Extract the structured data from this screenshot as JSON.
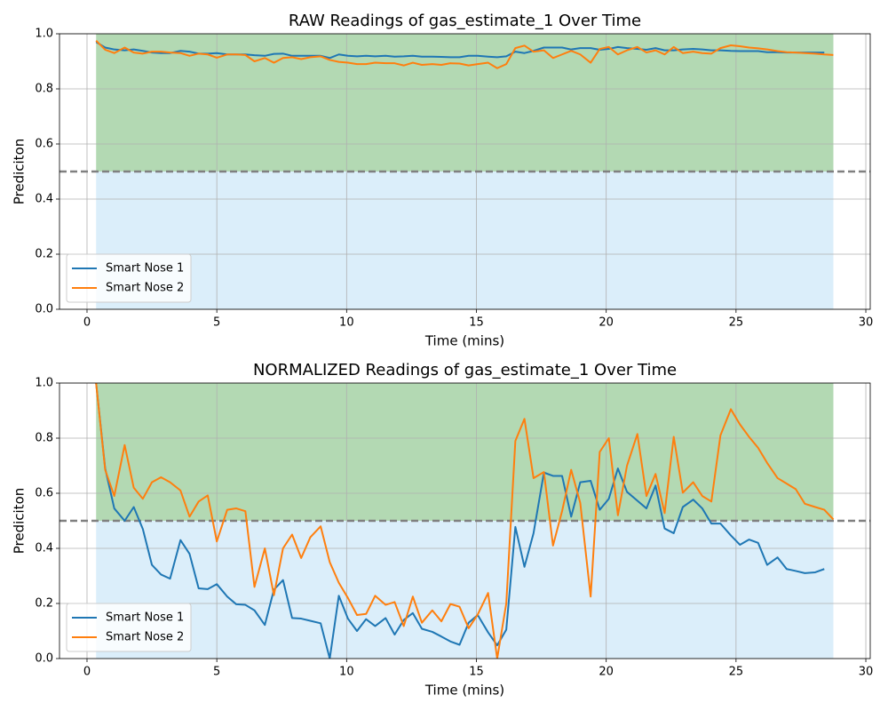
{
  "chart_data": [
    {
      "type": "line",
      "title": "RAW Readings of gas_estimate_1 Over Time",
      "xlabel": "Time (mins)",
      "ylabel": "Prediciton",
      "x": [
        0.35,
        0.7,
        1.05,
        1.45,
        1.8,
        2.15,
        2.5,
        2.85,
        3.2,
        3.6,
        3.95,
        4.3,
        4.65,
        5.0,
        5.4,
        5.75,
        6.1,
        6.45,
        6.85,
        7.2,
        7.55,
        7.9,
        8.25,
        8.6,
        9.0,
        9.35,
        9.7,
        10.05,
        10.4,
        10.75,
        11.1,
        11.5,
        11.85,
        12.2,
        12.55,
        12.9,
        13.3,
        13.65,
        14.0,
        14.35,
        14.7,
        15.05,
        15.45,
        15.8,
        16.15,
        16.5,
        16.85,
        17.2,
        17.6,
        17.95,
        18.3,
        18.65,
        19.0,
        19.4,
        19.75,
        20.1,
        20.45,
        20.8,
        21.2,
        21.55,
        21.9,
        22.25,
        22.6,
        22.95,
        23.35,
        23.7,
        24.05,
        24.4,
        24.8,
        25.15,
        25.5,
        25.85,
        26.2,
        26.6,
        26.95,
        27.3,
        27.65,
        28.05,
        28.4,
        28.75
      ],
      "series": [
        {
          "name": "Smart Nose 1",
          "color": "#1f77b4",
          "values": [
            0.97,
            0.95,
            0.943,
            0.94,
            0.943,
            0.938,
            0.932,
            0.93,
            0.93,
            0.938,
            0.935,
            0.928,
            0.928,
            0.93,
            0.925,
            0.925,
            0.925,
            0.922,
            0.92,
            0.927,
            0.928,
            0.92,
            0.92,
            0.92,
            0.92,
            0.912,
            0.925,
            0.92,
            0.918,
            0.92,
            0.918,
            0.92,
            0.917,
            0.918,
            0.92,
            0.917,
            0.917,
            0.916,
            0.915,
            0.915,
            0.92,
            0.92,
            0.917,
            0.915,
            0.918,
            0.935,
            0.93,
            0.938,
            0.95,
            0.95,
            0.95,
            0.943,
            0.948,
            0.948,
            0.942,
            0.945,
            0.952,
            0.948,
            0.945,
            0.942,
            0.948,
            0.94,
            0.94,
            0.943,
            0.945,
            0.943,
            0.94,
            0.94,
            0.938,
            0.937,
            0.937,
            0.937,
            0.933,
            0.933,
            0.932,
            0.932,
            0.932,
            0.932,
            0.932,
            null
          ]
        },
        {
          "name": "Smart Nose 2",
          "color": "#ff7f0e",
          "values": [
            0.975,
            0.942,
            0.93,
            0.95,
            0.932,
            0.928,
            0.935,
            0.935,
            0.932,
            0.93,
            0.92,
            0.928,
            0.925,
            0.913,
            0.925,
            0.925,
            0.923,
            0.9,
            0.912,
            0.895,
            0.912,
            0.915,
            0.908,
            0.915,
            0.918,
            0.905,
            0.898,
            0.895,
            0.89,
            0.89,
            0.895,
            0.893,
            0.893,
            0.885,
            0.895,
            0.887,
            0.89,
            0.887,
            0.893,
            0.892,
            0.885,
            0.89,
            0.895,
            0.875,
            0.89,
            0.948,
            0.957,
            0.935,
            0.94,
            0.912,
            0.925,
            0.938,
            0.925,
            0.895,
            0.945,
            0.952,
            0.925,
            0.94,
            0.952,
            0.932,
            0.94,
            0.925,
            0.952,
            0.93,
            0.935,
            0.93,
            0.928,
            0.948,
            0.958,
            0.955,
            0.95,
            0.947,
            0.943,
            0.937,
            0.933,
            0.932,
            0.93,
            0.928,
            0.925,
            0.923
          ]
        }
      ],
      "xlim": [
        -1.06,
        30.17
      ],
      "xticks": [
        0,
        5,
        10,
        15,
        20,
        25,
        30
      ],
      "ylim": [
        0,
        1
      ],
      "yticks": [
        {
          "value": 0,
          "label": "0.0"
        },
        0.2,
        0.4,
        0.6,
        0.8,
        {
          "value": 1,
          "label": "1.0"
        }
      ],
      "grid": true,
      "legend": "lower left",
      "threshold": 0.5,
      "threshold_color": "#808080",
      "above_color": "#b3d9b3",
      "below_color": "#dbeefa"
    },
    {
      "type": "line",
      "title": "NORMALIZED Readings of gas_estimate_1 Over Time",
      "xlabel": "Time (mins)",
      "ylabel": "Prediciton",
      "x": [
        0.35,
        0.7,
        1.05,
        1.45,
        1.8,
        2.15,
        2.5,
        2.85,
        3.2,
        3.6,
        3.95,
        4.3,
        4.65,
        5.0,
        5.4,
        5.75,
        6.1,
        6.45,
        6.85,
        7.2,
        7.55,
        7.9,
        8.25,
        8.6,
        9.0,
        9.35,
        9.7,
        10.05,
        10.4,
        10.75,
        11.1,
        11.5,
        11.85,
        12.2,
        12.55,
        12.9,
        13.3,
        13.65,
        14.0,
        14.35,
        14.7,
        15.05,
        15.45,
        15.8,
        16.15,
        16.5,
        16.85,
        17.2,
        17.6,
        17.95,
        18.3,
        18.65,
        19.0,
        19.4,
        19.75,
        20.1,
        20.45,
        20.8,
        21.2,
        21.55,
        21.9,
        22.25,
        22.6,
        22.95,
        23.35,
        23.7,
        24.05,
        24.4,
        24.8,
        25.15,
        25.5,
        25.85,
        26.2,
        26.6,
        26.95,
        27.3,
        27.65,
        28.05,
        28.4,
        28.75
      ],
      "series": [
        {
          "name": "Smart Nose 1",
          "color": "#1f77b4",
          "values": [
            1.0,
            0.69,
            0.545,
            0.5,
            0.55,
            0.47,
            0.34,
            0.305,
            0.29,
            0.43,
            0.38,
            0.255,
            0.252,
            0.27,
            0.225,
            0.197,
            0.195,
            0.175,
            0.122,
            0.25,
            0.285,
            0.147,
            0.145,
            0.137,
            0.128,
            0.0,
            0.228,
            0.145,
            0.1,
            0.143,
            0.118,
            0.147,
            0.087,
            0.14,
            0.165,
            0.108,
            0.097,
            0.08,
            0.062,
            0.05,
            0.13,
            0.158,
            0.095,
            0.048,
            0.105,
            0.478,
            0.333,
            0.455,
            0.675,
            0.663,
            0.663,
            0.515,
            0.64,
            0.645,
            0.54,
            0.58,
            0.69,
            0.605,
            0.573,
            0.545,
            0.628,
            0.472,
            0.455,
            0.55,
            0.577,
            0.545,
            0.49,
            0.49,
            0.447,
            0.413,
            0.432,
            0.42,
            0.34,
            0.367,
            0.325,
            0.318,
            0.31,
            0.313,
            0.325,
            null
          ]
        },
        {
          "name": "Smart Nose 2",
          "color": "#ff7f0e",
          "values": [
            1.0,
            0.685,
            0.59,
            0.775,
            0.62,
            0.58,
            0.64,
            0.658,
            0.64,
            0.61,
            0.515,
            0.57,
            0.592,
            0.425,
            0.54,
            0.545,
            0.535,
            0.26,
            0.4,
            0.23,
            0.4,
            0.45,
            0.365,
            0.44,
            0.48,
            0.35,
            0.275,
            0.22,
            0.158,
            0.162,
            0.228,
            0.195,
            0.205,
            0.118,
            0.225,
            0.13,
            0.175,
            0.135,
            0.198,
            0.188,
            0.11,
            0.16,
            0.238,
            0.0,
            0.2,
            0.79,
            0.87,
            0.655,
            0.677,
            0.41,
            0.535,
            0.685,
            0.565,
            0.225,
            0.75,
            0.8,
            0.52,
            0.7,
            0.815,
            0.59,
            0.67,
            0.528,
            0.805,
            0.602,
            0.64,
            0.59,
            0.57,
            0.81,
            0.905,
            0.85,
            0.805,
            0.765,
            0.71,
            0.655,
            0.635,
            0.615,
            0.562,
            0.55,
            0.54,
            0.505
          ]
        }
      ],
      "xlim": [
        -1.06,
        30.17
      ],
      "xticks": [
        0,
        5,
        10,
        15,
        20,
        25,
        30
      ],
      "ylim": [
        0,
        1
      ],
      "yticks": [
        {
          "value": 0,
          "label": "0.0"
        },
        0.2,
        0.4,
        0.6,
        0.8,
        {
          "value": 1,
          "label": "1.0"
        }
      ],
      "grid": true,
      "legend": "lower left",
      "threshold": 0.5,
      "threshold_color": "#808080",
      "above_color": "#b3d9b3",
      "below_color": "#dbeefa"
    }
  ]
}
